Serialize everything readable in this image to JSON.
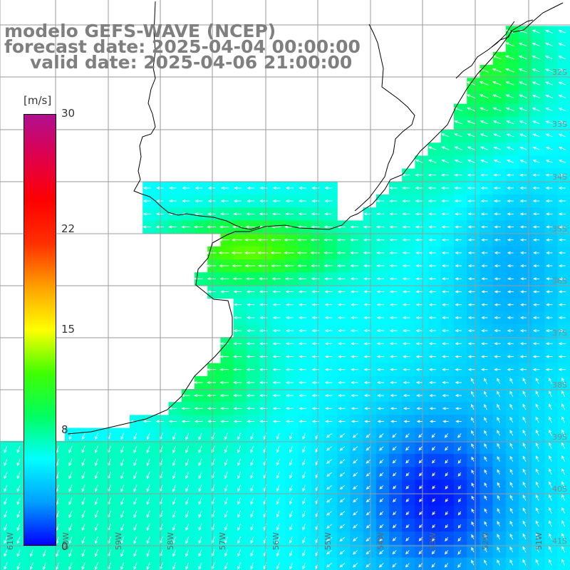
{
  "titles": {
    "line1": "modelo GEFS-WAVE (NCEP)",
    "line2": "forecast date: 2025-04-04 00:00:00",
    "line3": "valid date: 2025-04-06 21:00:00"
  },
  "colorbar": {
    "unit": "[m/s]",
    "ticks": [
      {
        "label": "30",
        "value": 30
      },
      {
        "label": "22",
        "value": 22
      },
      {
        "label": "15",
        "value": 15
      },
      {
        "label": "8",
        "value": 8
      },
      {
        "label": "0",
        "value": 0
      }
    ],
    "range": [
      0,
      30
    ],
    "colors": [
      "#0000ff",
      "#00a0ff",
      "#00ffff",
      "#00ff60",
      "#40ff00",
      "#ffff00",
      "#ffa000",
      "#ff3000",
      "#ff0000",
      "#e0004a",
      "#b01090"
    ]
  },
  "map": {
    "variable": "wind speed",
    "lon_labels": [
      "61W",
      "60W",
      "59W",
      "58W",
      "57W",
      "56W",
      "55W",
      "54W",
      "53W",
      "52W",
      "51W"
    ],
    "lat_labels": [
      "32S",
      "33S",
      "34S",
      "35S",
      "36S",
      "37S",
      "38S",
      "39S",
      "40S",
      "41S"
    ],
    "land_color": "#ffffff",
    "grid_color": "#9a9a9a",
    "coast_color": "#000000",
    "arrow_color": "#ffffff"
  }
}
